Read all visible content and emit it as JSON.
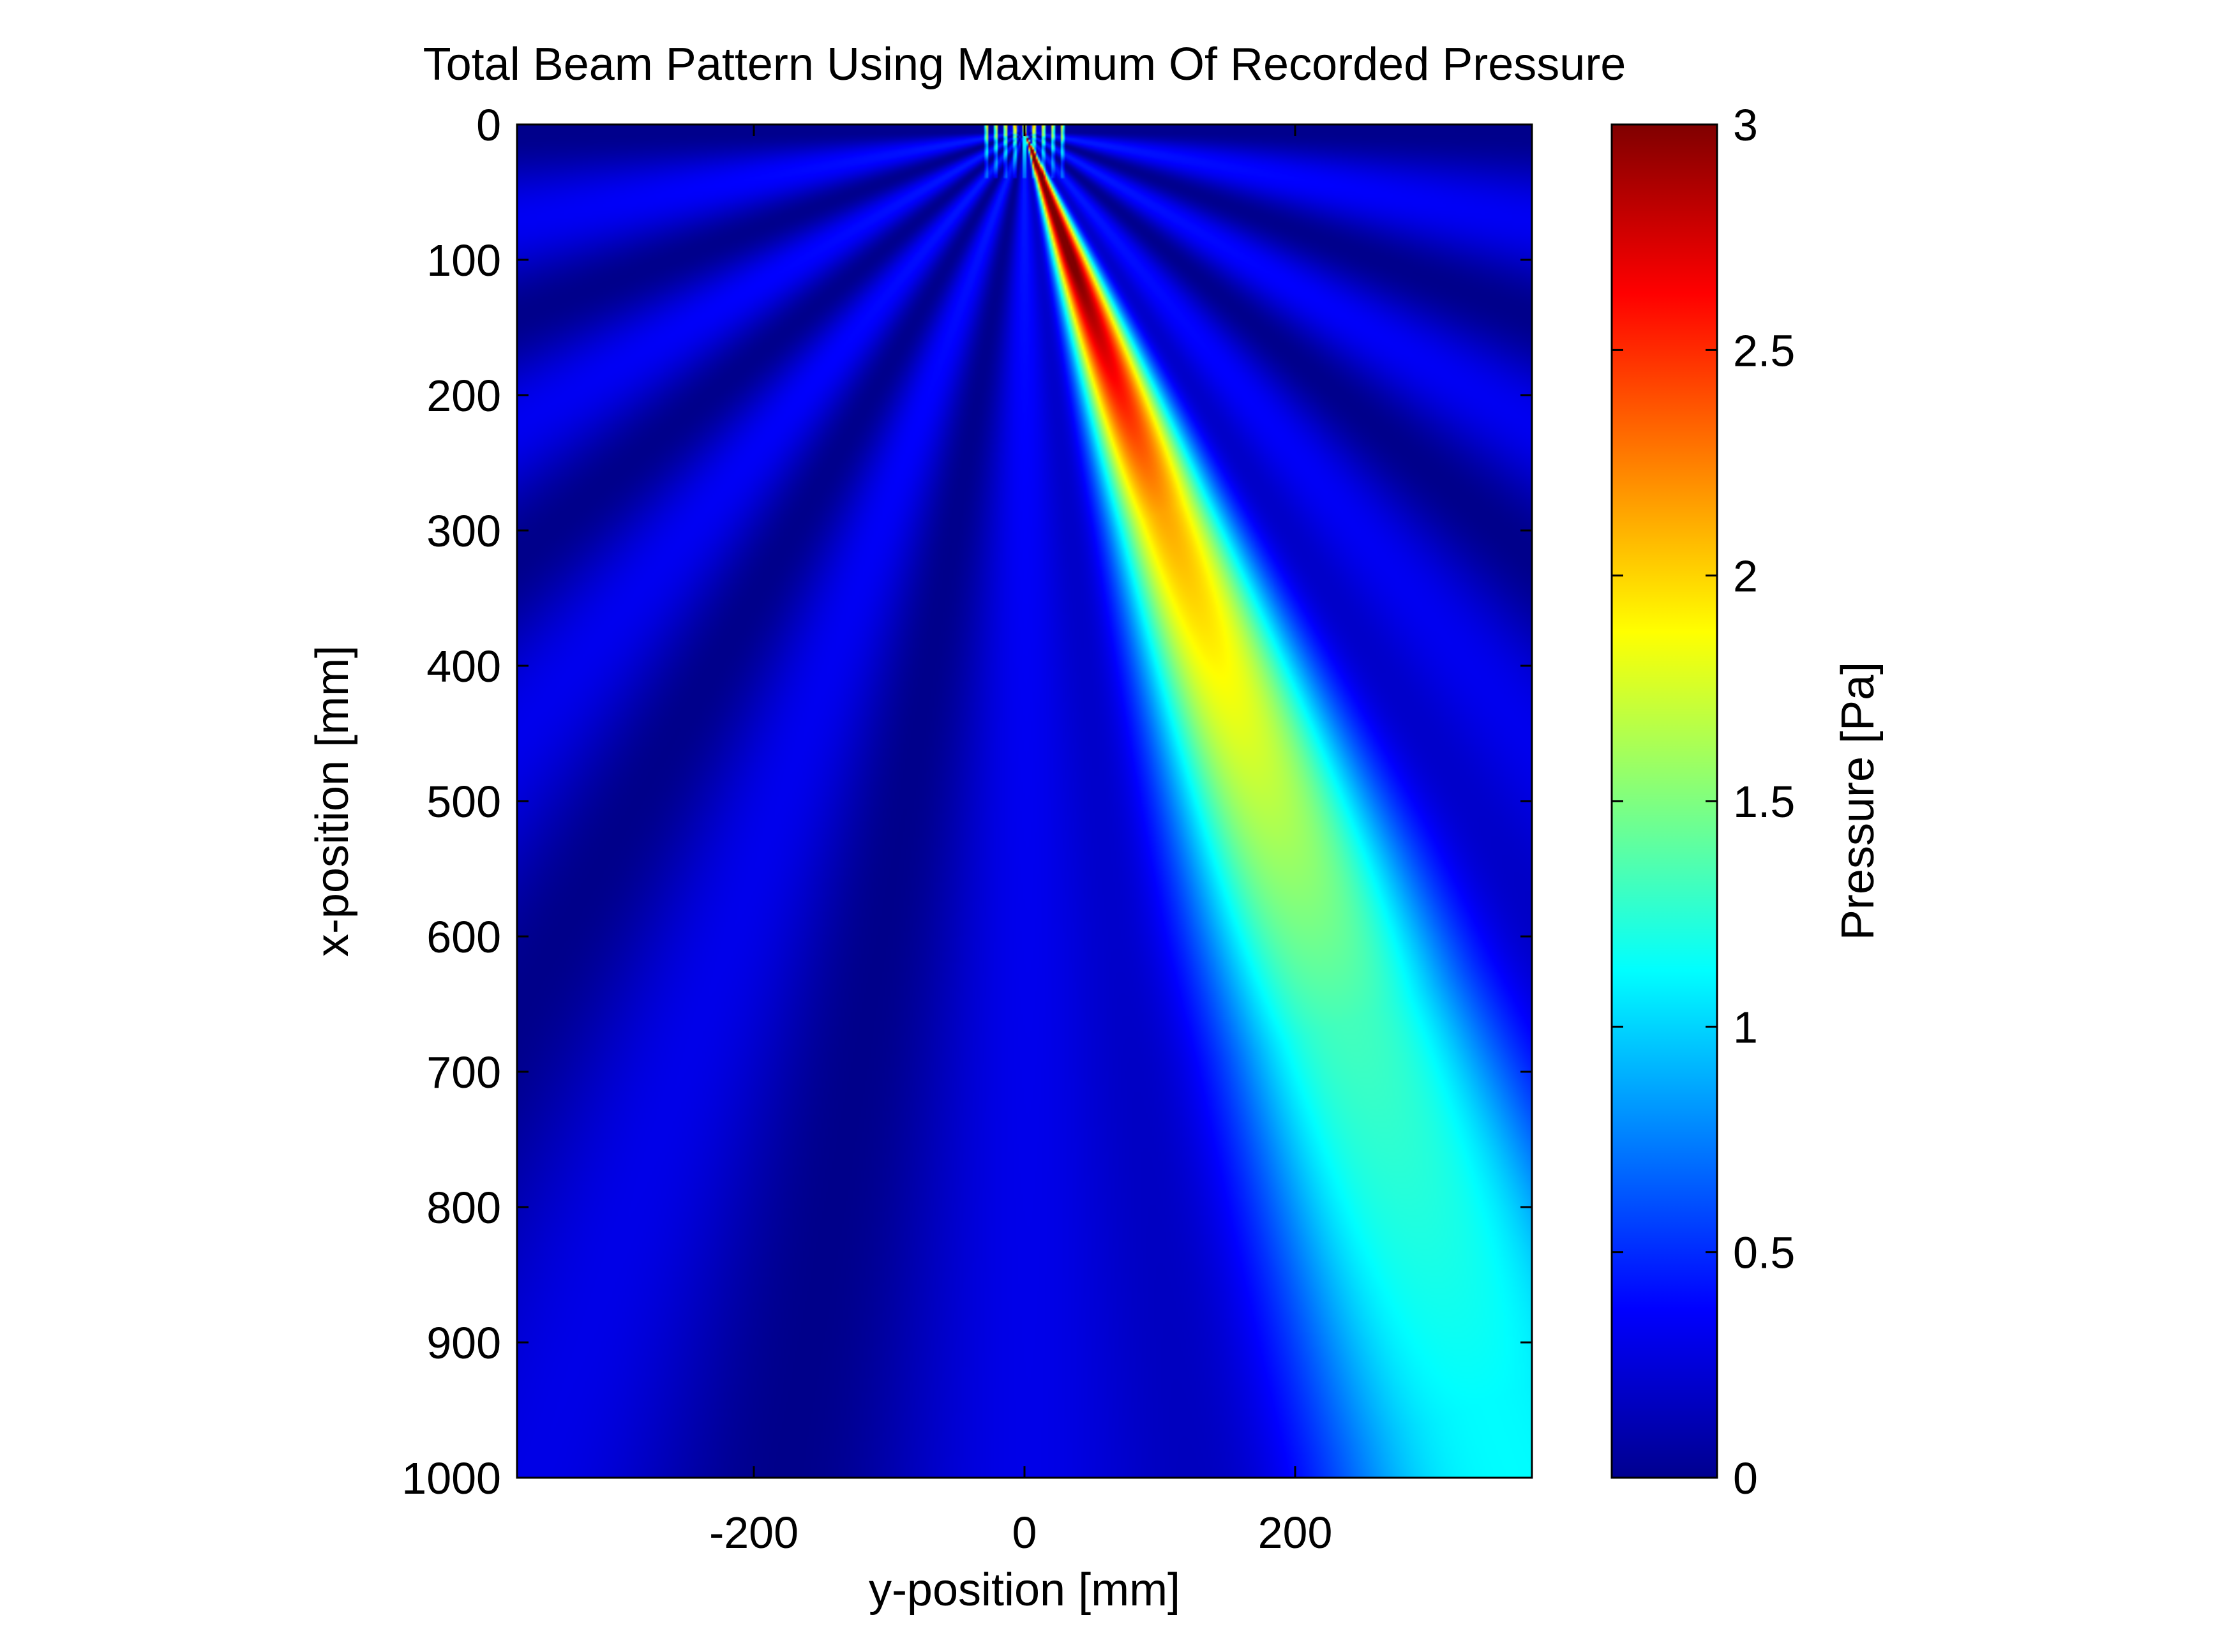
{
  "chart_data": {
    "type": "heatmap",
    "title": "Total Beam Pattern Using Maximum Of Recorded Pressure",
    "xlabel": "y-position [mm]",
    "ylabel": "x-position [mm]",
    "xlim": [
      -375,
      375
    ],
    "ylim": [
      0,
      1000
    ],
    "y_axis_reversed": true,
    "x_ticks": [
      -200,
      0,
      200
    ],
    "x_tick_labels": [
      "-200",
      "0",
      "200"
    ],
    "y_ticks": [
      0,
      100,
      200,
      300,
      400,
      500,
      600,
      700,
      800,
      900,
      1000
    ],
    "y_tick_labels": [
      "0",
      "100",
      "200",
      "300",
      "400",
      "500",
      "600",
      "700",
      "800",
      "900",
      "1000"
    ],
    "colormap": "jet",
    "colorbar": {
      "label": "Pressure [Pa]",
      "range": [
        0,
        3
      ],
      "ticks": [
        0,
        0.5,
        1,
        1.5,
        2,
        2.5,
        3
      ],
      "tick_labels": [
        "0",
        "0.5",
        "1",
        "1.5",
        "2",
        "2.5",
        "3"
      ]
    },
    "source": {
      "y_range_mm": [
        -30,
        30
      ],
      "x_mm": 5
    },
    "main_lobe": {
      "steering_angle_deg": 20,
      "peak_pressure_pa": 3,
      "peak_region_x_mm": [
        50,
        200
      ],
      "pressure_at_x_mm": [
        {
          "x": 100,
          "p": 2.9
        },
        {
          "x": 300,
          "p": 2.0
        },
        {
          "x": 500,
          "p": 1.6
        },
        {
          "x": 700,
          "p": 1.2
        },
        {
          "x": 1000,
          "p": 1.0
        }
      ]
    },
    "background_pressure_pa": 0.3
  }
}
